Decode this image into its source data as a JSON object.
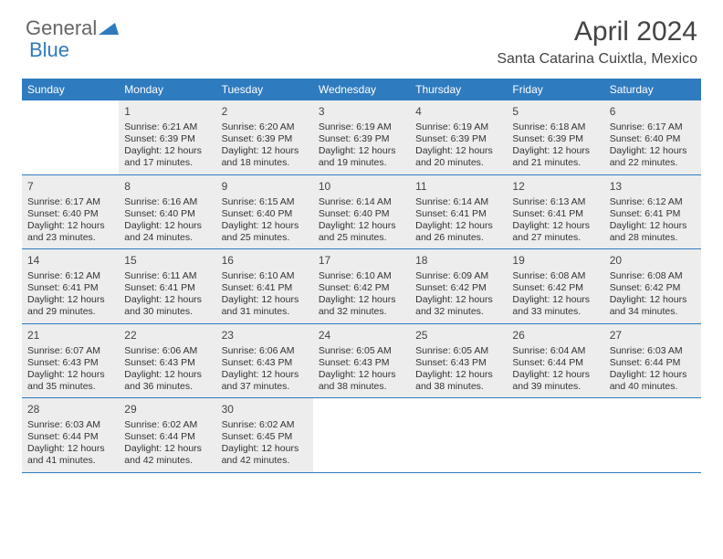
{
  "logo": {
    "text1": "General",
    "text2": "Blue"
  },
  "title": "April 2024",
  "location": "Santa Catarina Cuixtla, Mexico",
  "colors": {
    "header_bg": "#2f7bbf",
    "header_text": "#ffffff",
    "shaded_bg": "#ededed",
    "border": "#2f7bbf",
    "page_bg": "#ffffff",
    "text": "#333333"
  },
  "day_headers": [
    "Sunday",
    "Monday",
    "Tuesday",
    "Wednesday",
    "Thursday",
    "Friday",
    "Saturday"
  ],
  "weeks": [
    [
      {
        "day": "",
        "shaded": false,
        "sunrise": "",
        "sunset": "",
        "daylight1": "",
        "daylight2": ""
      },
      {
        "day": "1",
        "shaded": true,
        "sunrise": "Sunrise: 6:21 AM",
        "sunset": "Sunset: 6:39 PM",
        "daylight1": "Daylight: 12 hours",
        "daylight2": "and 17 minutes."
      },
      {
        "day": "2",
        "shaded": true,
        "sunrise": "Sunrise: 6:20 AM",
        "sunset": "Sunset: 6:39 PM",
        "daylight1": "Daylight: 12 hours",
        "daylight2": "and 18 minutes."
      },
      {
        "day": "3",
        "shaded": true,
        "sunrise": "Sunrise: 6:19 AM",
        "sunset": "Sunset: 6:39 PM",
        "daylight1": "Daylight: 12 hours",
        "daylight2": "and 19 minutes."
      },
      {
        "day": "4",
        "shaded": true,
        "sunrise": "Sunrise: 6:19 AM",
        "sunset": "Sunset: 6:39 PM",
        "daylight1": "Daylight: 12 hours",
        "daylight2": "and 20 minutes."
      },
      {
        "day": "5",
        "shaded": true,
        "sunrise": "Sunrise: 6:18 AM",
        "sunset": "Sunset: 6:39 PM",
        "daylight1": "Daylight: 12 hours",
        "daylight2": "and 21 minutes."
      },
      {
        "day": "6",
        "shaded": true,
        "sunrise": "Sunrise: 6:17 AM",
        "sunset": "Sunset: 6:40 PM",
        "daylight1": "Daylight: 12 hours",
        "daylight2": "and 22 minutes."
      }
    ],
    [
      {
        "day": "7",
        "shaded": true,
        "sunrise": "Sunrise: 6:17 AM",
        "sunset": "Sunset: 6:40 PM",
        "daylight1": "Daylight: 12 hours",
        "daylight2": "and 23 minutes."
      },
      {
        "day": "8",
        "shaded": true,
        "sunrise": "Sunrise: 6:16 AM",
        "sunset": "Sunset: 6:40 PM",
        "daylight1": "Daylight: 12 hours",
        "daylight2": "and 24 minutes."
      },
      {
        "day": "9",
        "shaded": true,
        "sunrise": "Sunrise: 6:15 AM",
        "sunset": "Sunset: 6:40 PM",
        "daylight1": "Daylight: 12 hours",
        "daylight2": "and 25 minutes."
      },
      {
        "day": "10",
        "shaded": true,
        "sunrise": "Sunrise: 6:14 AM",
        "sunset": "Sunset: 6:40 PM",
        "daylight1": "Daylight: 12 hours",
        "daylight2": "and 25 minutes."
      },
      {
        "day": "11",
        "shaded": true,
        "sunrise": "Sunrise: 6:14 AM",
        "sunset": "Sunset: 6:41 PM",
        "daylight1": "Daylight: 12 hours",
        "daylight2": "and 26 minutes."
      },
      {
        "day": "12",
        "shaded": true,
        "sunrise": "Sunrise: 6:13 AM",
        "sunset": "Sunset: 6:41 PM",
        "daylight1": "Daylight: 12 hours",
        "daylight2": "and 27 minutes."
      },
      {
        "day": "13",
        "shaded": true,
        "sunrise": "Sunrise: 6:12 AM",
        "sunset": "Sunset: 6:41 PM",
        "daylight1": "Daylight: 12 hours",
        "daylight2": "and 28 minutes."
      }
    ],
    [
      {
        "day": "14",
        "shaded": true,
        "sunrise": "Sunrise: 6:12 AM",
        "sunset": "Sunset: 6:41 PM",
        "daylight1": "Daylight: 12 hours",
        "daylight2": "and 29 minutes."
      },
      {
        "day": "15",
        "shaded": true,
        "sunrise": "Sunrise: 6:11 AM",
        "sunset": "Sunset: 6:41 PM",
        "daylight1": "Daylight: 12 hours",
        "daylight2": "and 30 minutes."
      },
      {
        "day": "16",
        "shaded": true,
        "sunrise": "Sunrise: 6:10 AM",
        "sunset": "Sunset: 6:41 PM",
        "daylight1": "Daylight: 12 hours",
        "daylight2": "and 31 minutes."
      },
      {
        "day": "17",
        "shaded": true,
        "sunrise": "Sunrise: 6:10 AM",
        "sunset": "Sunset: 6:42 PM",
        "daylight1": "Daylight: 12 hours",
        "daylight2": "and 32 minutes."
      },
      {
        "day": "18",
        "shaded": true,
        "sunrise": "Sunrise: 6:09 AM",
        "sunset": "Sunset: 6:42 PM",
        "daylight1": "Daylight: 12 hours",
        "daylight2": "and 32 minutes."
      },
      {
        "day": "19",
        "shaded": true,
        "sunrise": "Sunrise: 6:08 AM",
        "sunset": "Sunset: 6:42 PM",
        "daylight1": "Daylight: 12 hours",
        "daylight2": "and 33 minutes."
      },
      {
        "day": "20",
        "shaded": true,
        "sunrise": "Sunrise: 6:08 AM",
        "sunset": "Sunset: 6:42 PM",
        "daylight1": "Daylight: 12 hours",
        "daylight2": "and 34 minutes."
      }
    ],
    [
      {
        "day": "21",
        "shaded": true,
        "sunrise": "Sunrise: 6:07 AM",
        "sunset": "Sunset: 6:43 PM",
        "daylight1": "Daylight: 12 hours",
        "daylight2": "and 35 minutes."
      },
      {
        "day": "22",
        "shaded": true,
        "sunrise": "Sunrise: 6:06 AM",
        "sunset": "Sunset: 6:43 PM",
        "daylight1": "Daylight: 12 hours",
        "daylight2": "and 36 minutes."
      },
      {
        "day": "23",
        "shaded": true,
        "sunrise": "Sunrise: 6:06 AM",
        "sunset": "Sunset: 6:43 PM",
        "daylight1": "Daylight: 12 hours",
        "daylight2": "and 37 minutes."
      },
      {
        "day": "24",
        "shaded": true,
        "sunrise": "Sunrise: 6:05 AM",
        "sunset": "Sunset: 6:43 PM",
        "daylight1": "Daylight: 12 hours",
        "daylight2": "and 38 minutes."
      },
      {
        "day": "25",
        "shaded": true,
        "sunrise": "Sunrise: 6:05 AM",
        "sunset": "Sunset: 6:43 PM",
        "daylight1": "Daylight: 12 hours",
        "daylight2": "and 38 minutes."
      },
      {
        "day": "26",
        "shaded": true,
        "sunrise": "Sunrise: 6:04 AM",
        "sunset": "Sunset: 6:44 PM",
        "daylight1": "Daylight: 12 hours",
        "daylight2": "and 39 minutes."
      },
      {
        "day": "27",
        "shaded": true,
        "sunrise": "Sunrise: 6:03 AM",
        "sunset": "Sunset: 6:44 PM",
        "daylight1": "Daylight: 12 hours",
        "daylight2": "and 40 minutes."
      }
    ],
    [
      {
        "day": "28",
        "shaded": true,
        "sunrise": "Sunrise: 6:03 AM",
        "sunset": "Sunset: 6:44 PM",
        "daylight1": "Daylight: 12 hours",
        "daylight2": "and 41 minutes."
      },
      {
        "day": "29",
        "shaded": true,
        "sunrise": "Sunrise: 6:02 AM",
        "sunset": "Sunset: 6:44 PM",
        "daylight1": "Daylight: 12 hours",
        "daylight2": "and 42 minutes."
      },
      {
        "day": "30",
        "shaded": true,
        "sunrise": "Sunrise: 6:02 AM",
        "sunset": "Sunset: 6:45 PM",
        "daylight1": "Daylight: 12 hours",
        "daylight2": "and 42 minutes."
      },
      {
        "day": "",
        "shaded": false,
        "sunrise": "",
        "sunset": "",
        "daylight1": "",
        "daylight2": ""
      },
      {
        "day": "",
        "shaded": false,
        "sunrise": "",
        "sunset": "",
        "daylight1": "",
        "daylight2": ""
      },
      {
        "day": "",
        "shaded": false,
        "sunrise": "",
        "sunset": "",
        "daylight1": "",
        "daylight2": ""
      },
      {
        "day": "",
        "shaded": false,
        "sunrise": "",
        "sunset": "",
        "daylight1": "",
        "daylight2": ""
      }
    ]
  ]
}
